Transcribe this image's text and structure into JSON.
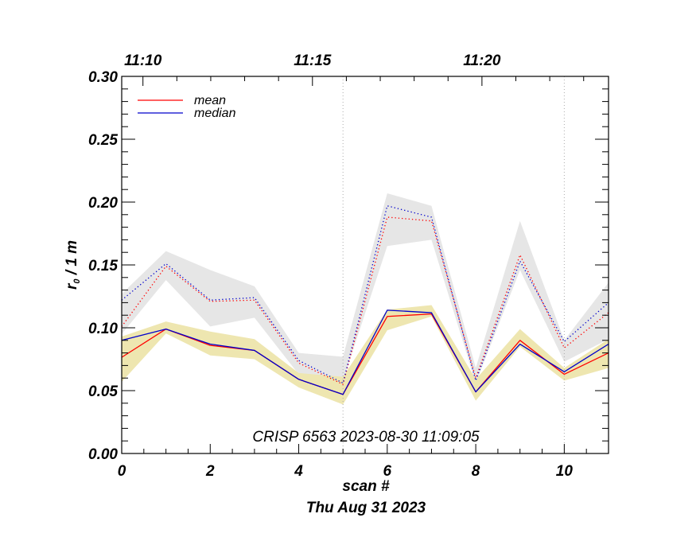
{
  "chart_data": {
    "type": "line",
    "title": "",
    "annotation": "CRISP 6563 2023-08-30 11:09:05",
    "xlabel": "scan #",
    "xlabel2": "Thu Aug 31 2023",
    "ylabel_main": "r",
    "ylabel_sub": "0",
    "ylabel_rest": " / 1 m",
    "xlim": [
      0,
      11
    ],
    "ylim": [
      0.0,
      0.3
    ],
    "x_major_ticks": [
      0,
      2,
      4,
      6,
      8,
      10
    ],
    "x_tick_labels": [
      "0",
      "2",
      "4",
      "6",
      "8",
      "10"
    ],
    "x_minor_step": 0.5,
    "y_major_ticks": [
      0.0,
      0.05,
      0.1,
      0.15,
      0.2,
      0.25,
      0.3
    ],
    "y_tick_labels": [
      "0.00",
      "0.05",
      "0.10",
      "0.15",
      "0.20",
      "0.25",
      "0.30"
    ],
    "y_minor_step": 0.01,
    "top_axis": {
      "tick_labels": [
        "11:10",
        "11:15",
        "11:20"
      ],
      "major_positions": [
        0.48,
        4.31,
        8.14
      ],
      "minor_step": 0.766
    },
    "vertical_markers": [
      5,
      10
    ],
    "legend": {
      "placement": "top-left",
      "entries": [
        {
          "label": "mean",
          "color": "#ff0000"
        },
        {
          "label": "median",
          "color": "#0000cc"
        }
      ]
    },
    "x": [
      0,
      1,
      2,
      3,
      4,
      5,
      6,
      7,
      8,
      9,
      10,
      11
    ],
    "series": [
      {
        "name": "mean (dotted, upper)",
        "color": "#ff0000",
        "style": "dotted",
        "values": [
          0.101,
          0.149,
          0.121,
          0.122,
          0.072,
          0.055,
          0.188,
          0.185,
          0.06,
          0.158,
          0.084,
          0.112
        ]
      },
      {
        "name": "median (dotted, upper)",
        "color": "#0000cc",
        "style": "dotted",
        "values": [
          0.122,
          0.151,
          0.122,
          0.124,
          0.074,
          0.056,
          0.197,
          0.188,
          0.058,
          0.153,
          0.089,
          0.12
        ]
      },
      {
        "name": "mean (solid, lower)",
        "color": "#ff0000",
        "style": "solid",
        "values": [
          0.0765,
          0.099,
          0.086,
          0.082,
          0.059,
          0.047,
          0.109,
          0.111,
          0.049,
          0.09,
          0.063,
          0.08
        ]
      },
      {
        "name": "median (solid, lower)",
        "color": "#0000cc",
        "style": "solid",
        "values": [
          0.09,
          0.099,
          0.087,
          0.082,
          0.059,
          0.047,
          0.114,
          0.112,
          0.049,
          0.087,
          0.065,
          0.087
        ]
      }
    ],
    "bands": [
      {
        "name": "upper range",
        "color": "#e6e6e6",
        "upper": [
          0.127,
          0.161,
          0.146,
          0.133,
          0.08,
          0.077,
          0.207,
          0.197,
          0.068,
          0.185,
          0.09,
          0.136
        ],
        "lower": [
          0.095,
          0.138,
          0.101,
          0.108,
          0.063,
          0.058,
          0.165,
          0.17,
          0.056,
          0.146,
          0.073,
          0.091
        ]
      },
      {
        "name": "lower range",
        "color": "#eee6b0",
        "upper": [
          0.093,
          0.105,
          0.097,
          0.091,
          0.064,
          0.061,
          0.1145,
          0.118,
          0.059,
          0.099,
          0.068,
          0.091
        ],
        "lower": [
          0.057,
          0.0955,
          0.078,
          0.075,
          0.0525,
          0.039,
          0.098,
          0.109,
          0.042,
          0.085,
          0.058,
          0.068
        ]
      }
    ]
  }
}
